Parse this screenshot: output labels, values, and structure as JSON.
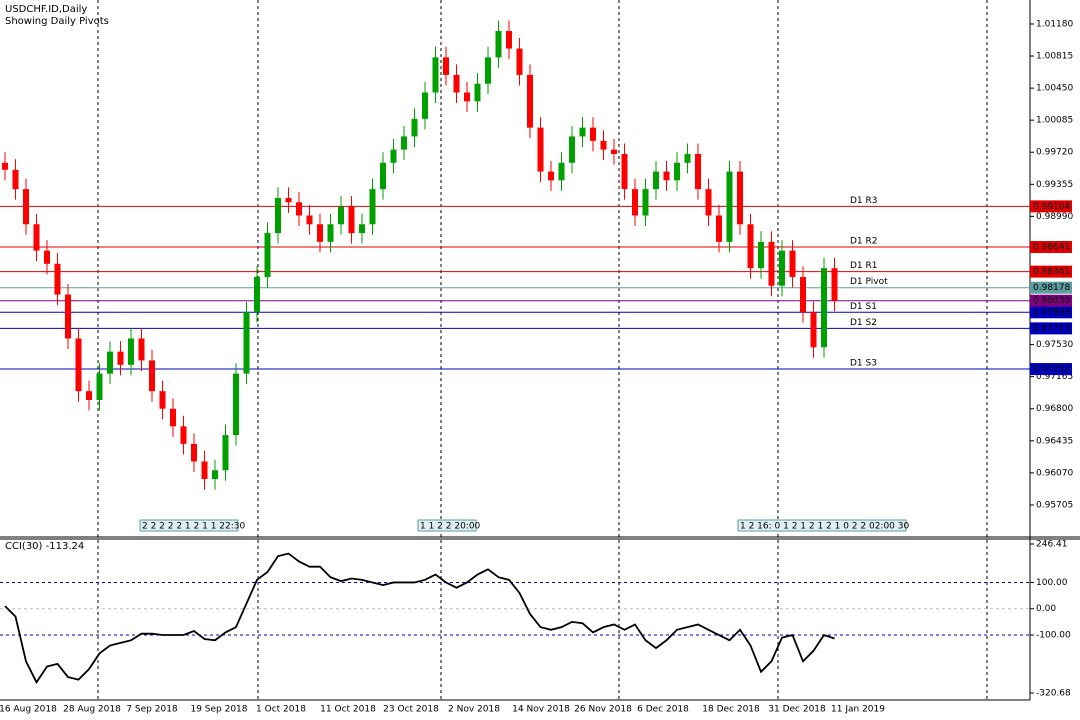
{
  "chart_data": [
    {
      "type": "candlestick",
      "title": "USDCHF.ID,Daily",
      "subtitle": "Showing Daily Pivots",
      "bull_color": "#00a000",
      "bear_color": "#ff0000",
      "ylim": [
        0.9534,
        1.01453
      ],
      "yticks": [
        {
          "value": 1.0118,
          "label": "1.01180"
        },
        1.00815,
        {
          "value": 1.0045,
          "label": "1.00450"
        },
        1.00085,
        {
          "value": 0.9972,
          "label": "0.99720"
        },
        0.99355,
        {
          "value": 0.9899,
          "label": "0.98990"
        },
        {
          "value": 0.9753,
          "label": "0.97530"
        },
        0.97165,
        {
          "value": 0.968,
          "label": "0.96800"
        },
        0.96435,
        {
          "value": 0.9607,
          "label": "0.96070"
        },
        0.95705
      ],
      "open": [
        0.996,
        0.9952,
        0.993,
        0.989,
        0.986,
        0.9845,
        0.981,
        0.976,
        0.97,
        0.969,
        0.972,
        0.9745,
        0.973,
        0.976,
        0.9735,
        0.97,
        0.968,
        0.966,
        0.964,
        0.962,
        0.96,
        0.961,
        0.965,
        0.972,
        0.979,
        0.983,
        0.988,
        0.992,
        0.9915,
        0.99,
        0.989,
        0.987,
        0.989,
        0.991,
        0.988,
        0.989,
        0.993,
        0.996,
        0.9975,
        0.999,
        1.001,
        1.004,
        1.008,
        1.006,
        1.004,
        1.003,
        1.005,
        1.008,
        1.011,
        1.009,
        1.006,
        1.0,
        0.995,
        0.994,
        0.996,
        0.999,
        1.0,
        0.9985,
        0.9975,
        0.997,
        0.993,
        0.99,
        0.993,
        0.995,
        0.994,
        0.996,
        0.997,
        0.993,
        0.99,
        0.987,
        0.995,
        0.989,
        0.984,
        0.987,
        0.982,
        0.986,
        0.983,
        0.979,
        0.975,
        0.984
      ],
      "high": [
        0.9972,
        0.9964,
        0.9942,
        0.9902,
        0.9872,
        0.9857,
        0.9822,
        0.9772,
        0.9712,
        0.9732,
        0.9757,
        0.9757,
        0.9772,
        0.9772,
        0.9747,
        0.9712,
        0.9692,
        0.9672,
        0.9652,
        0.9632,
        0.9622,
        0.9662,
        0.9732,
        0.9802,
        0.9842,
        0.9892,
        0.9932,
        0.9932,
        0.9927,
        0.9912,
        0.9902,
        0.9902,
        0.9922,
        0.9922,
        0.9902,
        0.9942,
        0.9972,
        0.9987,
        1.0002,
        1.0022,
        1.0052,
        1.0092,
        1.0092,
        1.0072,
        1.0052,
        1.0062,
        1.0092,
        1.0122,
        1.0122,
        1.0102,
        1.0072,
        1.0012,
        0.9962,
        0.9972,
        1.0002,
        1.0012,
        1.0012,
        0.9997,
        0.9987,
        0.9982,
        0.9942,
        0.9942,
        0.9962,
        0.9962,
        0.9972,
        0.9982,
        0.9982,
        0.9942,
        0.9912,
        0.9962,
        0.9962,
        0.9902,
        0.9882,
        0.9882,
        0.9872,
        0.9872,
        0.9842,
        0.9802,
        0.9852,
        0.9852
      ],
      "low": [
        0.994,
        0.9918,
        0.9878,
        0.9848,
        0.9833,
        0.9798,
        0.9748,
        0.9688,
        0.9678,
        0.9678,
        0.9708,
        0.9718,
        0.9718,
        0.9723,
        0.9688,
        0.9668,
        0.9648,
        0.9628,
        0.9608,
        0.9588,
        0.9588,
        0.9598,
        0.9638,
        0.9708,
        0.9778,
        0.9818,
        0.9868,
        0.9903,
        0.9888,
        0.9878,
        0.9858,
        0.9858,
        0.9878,
        0.9868,
        0.9868,
        0.9878,
        0.9918,
        0.9948,
        0.9963,
        0.9978,
        0.9998,
        1.0028,
        1.0048,
        1.0028,
        1.0018,
        1.0018,
        1.0038,
        1.0068,
        1.0078,
        1.0048,
        0.9988,
        0.9938,
        0.9928,
        0.9928,
        0.9948,
        0.9978,
        0.9973,
        0.9963,
        0.9958,
        0.9918,
        0.9888,
        0.9888,
        0.9918,
        0.9928,
        0.9928,
        0.9948,
        0.9918,
        0.9888,
        0.9858,
        0.9858,
        0.9878,
        0.9828,
        0.9828,
        0.9808,
        0.9808,
        0.9818,
        0.9778,
        0.9738,
        0.9738,
        0.9791
      ],
      "close": [
        0.9952,
        0.993,
        0.989,
        0.986,
        0.9845,
        0.981,
        0.976,
        0.97,
        0.969,
        0.972,
        0.9745,
        0.973,
        0.976,
        0.9735,
        0.97,
        0.968,
        0.966,
        0.964,
        0.962,
        0.96,
        0.961,
        0.965,
        0.972,
        0.979,
        0.983,
        0.988,
        0.992,
        0.9915,
        0.99,
        0.989,
        0.987,
        0.989,
        0.991,
        0.988,
        0.989,
        0.993,
        0.996,
        0.9975,
        0.999,
        1.001,
        1.004,
        1.008,
        1.006,
        1.004,
        1.003,
        1.005,
        1.008,
        1.011,
        1.009,
        1.006,
        1.0,
        0.995,
        0.994,
        0.996,
        0.999,
        1.0,
        0.9985,
        0.9975,
        0.997,
        0.993,
        0.99,
        0.993,
        0.995,
        0.994,
        0.996,
        0.997,
        0.993,
        0.99,
        0.987,
        0.995,
        0.989,
        0.984,
        0.987,
        0.982,
        0.986,
        0.983,
        0.979,
        0.975,
        0.984,
        0.9803
      ],
      "pivots": [
        {
          "name": "D1 R3",
          "value": 0.99104,
          "color": "#e00000"
        },
        {
          "name": "D1 R2",
          "value": 0.98641,
          "color": "#e00000"
        },
        {
          "name": "D1 R1",
          "value": 0.98361,
          "color": "#e00000"
        },
        {
          "name": "D1 Pivot",
          "value": 0.98178,
          "color": "#5f9ea0"
        },
        {
          "name": "D1 S1",
          "value": 0.97898,
          "color": "#0000c0"
        },
        {
          "name": "D1 S2",
          "value": 0.97715,
          "color": "#0000c0"
        },
        {
          "name": "D1 S3",
          "value": 0.97252,
          "color": "#0000c0"
        }
      ],
      "last_price": {
        "value": 0.9803,
        "label": "0.98030",
        "color": "#800080"
      },
      "annotations": [
        "2 2 2 2 2 1 2 1 1 22:30",
        "1 1 2 2 20:00",
        "1 2 16: 0 1 2 1 2 1 2 1 0 2 2 02:00 30"
      ],
      "date_labels": [
        "16 Aug 2018",
        "28 Aug 2018",
        "7 Sep 2018",
        "19 Sep 2018",
        "1 Oct 2018",
        "11 Oct 2018",
        "23 Oct 2018",
        "2 Nov 2018",
        "14 Nov 2018",
        "26 Nov 2018",
        "6 Dec 2018",
        "18 Dec 2018",
        "31 Dec 2018",
        "11 Jan 2019"
      ]
    },
    {
      "type": "line",
      "title": "CCI(30) -113.24",
      "color": "#000000",
      "ylim": [
        -347.3,
        265.4
      ],
      "yticks": [
        246.41,
        {
          "value": 100,
          "label": "100.00"
        },
        {
          "value": 0,
          "label": "0.00"
        },
        {
          "value": -100,
          "label": "-100.00"
        },
        -320.68
      ],
      "values": [
        10,
        -30,
        -200,
        -280,
        -220,
        -210,
        -260,
        -270,
        -230,
        -170,
        -140,
        -130,
        -120,
        -95,
        -95,
        -100,
        -100,
        -100,
        -85,
        -115,
        -120,
        -90,
        -70,
        20,
        110,
        140,
        200,
        210,
        180,
        160,
        160,
        120,
        105,
        115,
        110,
        100,
        90,
        100,
        100,
        100,
        110,
        130,
        100,
        80,
        100,
        130,
        150,
        120,
        110,
        60,
        -20,
        -70,
        -80,
        -70,
        -50,
        -55,
        -90,
        -70,
        -60,
        -80,
        -60,
        -120,
        -150,
        -120,
        -80,
        -70,
        -60,
        -80,
        -100,
        -120,
        -80,
        -140,
        -240,
        -200,
        -110,
        -100,
        -200,
        -160,
        -100,
        -113.24
      ]
    }
  ]
}
